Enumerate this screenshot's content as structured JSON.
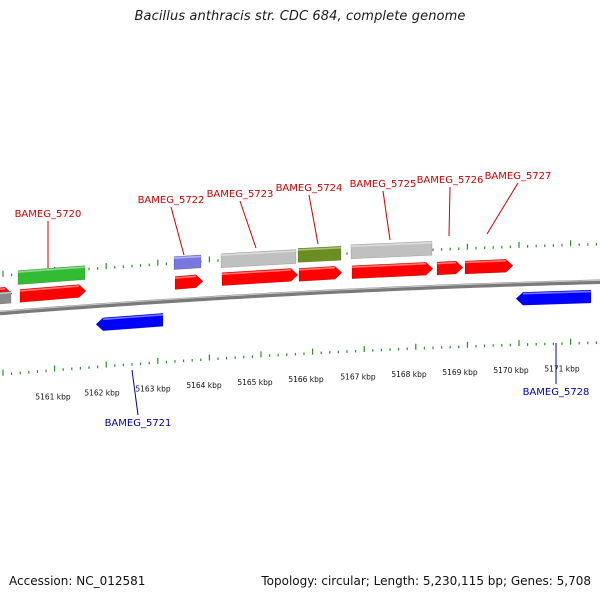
{
  "title": "Bacillus anthracis str. CDC 684, complete genome",
  "footer": {
    "accession": "Accession: NC_012581",
    "summary": "Topology: circular; Length: 5,230,115 bp; Genes: 5,708"
  },
  "colors": {
    "plus_cds": "#ff0000",
    "minus_cds": "#0000ff",
    "plus_label": "#cc0000",
    "minus_label": "#0000aa",
    "ticks": "#2e8b2e",
    "backbone": "#7a7a7a",
    "rrna_green": "#33bb33",
    "olive": "#6b8e23",
    "grey_feature": "#c0c0c0",
    "violet": "#7777dd"
  },
  "scale": {
    "unit": "kbp",
    "labels": [
      "5161 kbp",
      "5162 kbp",
      "5163 kbp",
      "5164 kbp",
      "5165 kbp",
      "5166 kbp",
      "5167 kbp",
      "5168 kbp",
      "5169 kbp",
      "5170 kbp",
      "5171 kbp"
    ]
  },
  "genes": {
    "plus": [
      "BAMEG_5720",
      "BAMEG_5722",
      "BAMEG_5723",
      "BAMEG_5724",
      "BAMEG_5725",
      "BAMEG_5726",
      "BAMEG_5727"
    ],
    "minus": [
      "BAMEG_5721",
      "BAMEG_5728"
    ]
  }
}
